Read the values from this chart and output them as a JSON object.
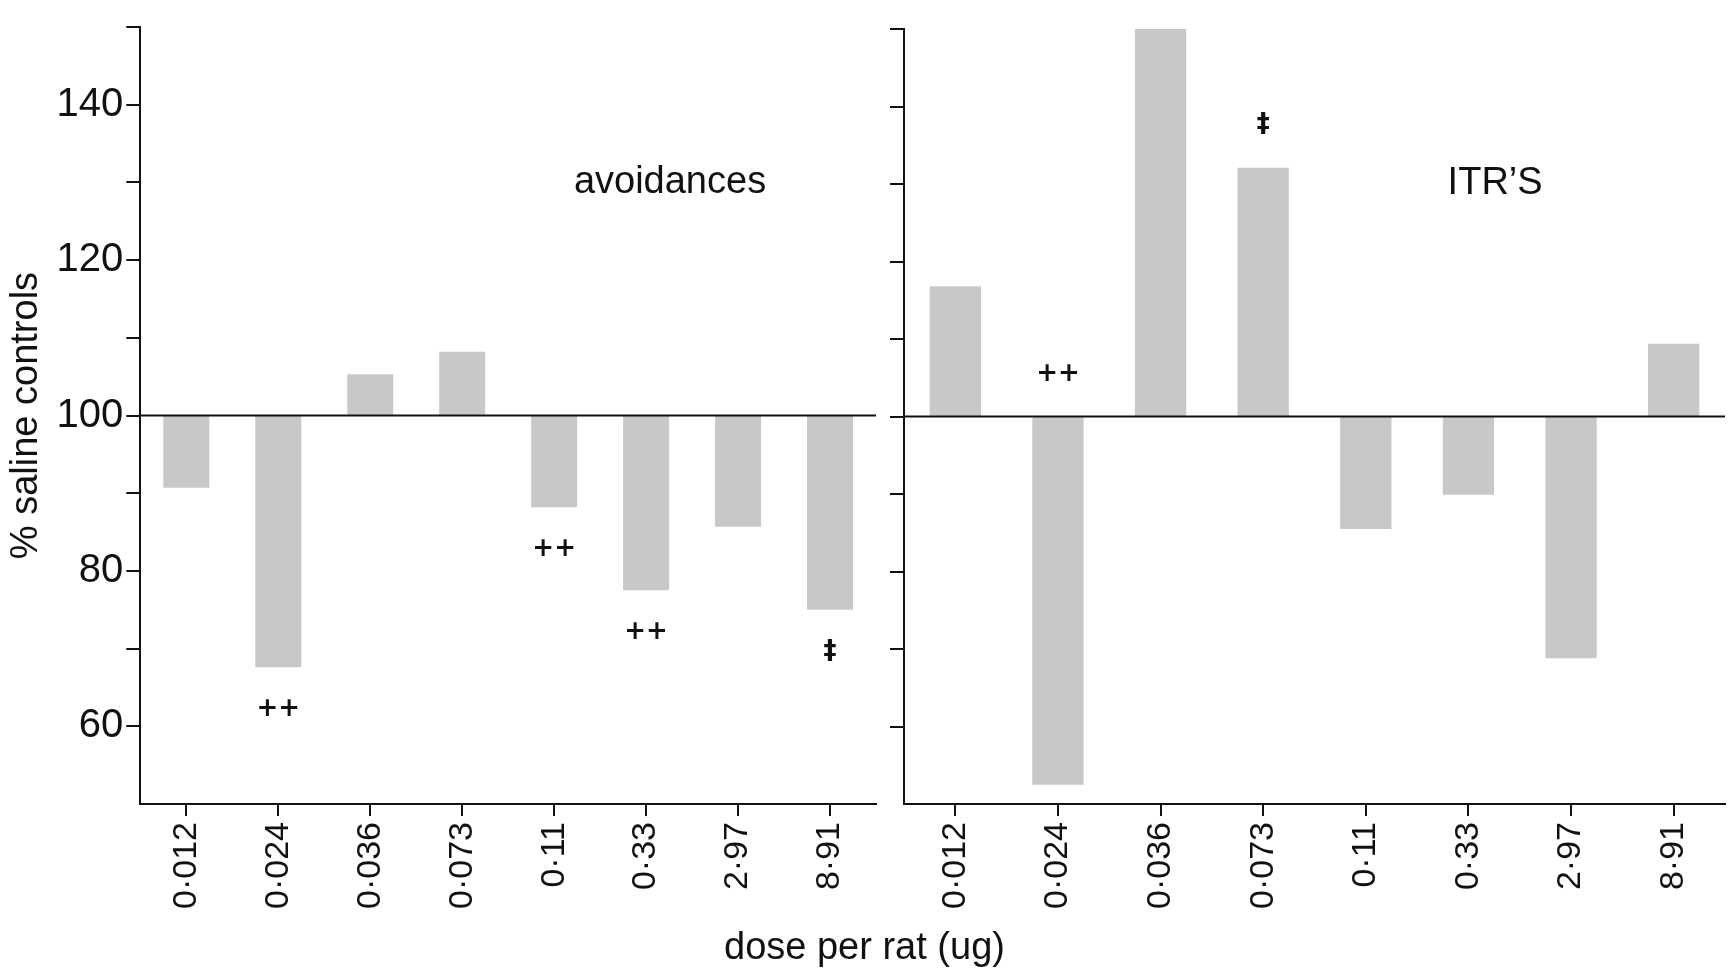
{
  "chart_data": [
    {
      "type": "bar",
      "xlabel": "dose per rat (ug)",
      "ylabel": "% saline controls",
      "categories": [
        "0·012",
        "0·024",
        "0·036",
        "0·073",
        "0·11",
        "0·33",
        "2·97",
        "8·91"
      ],
      "base": [
        100,
        100,
        100,
        100,
        100,
        100,
        100,
        100
      ],
      "values": [
        -9.3,
        -32.4,
        5.3,
        8.2,
        -11.8,
        -22.5,
        -14.3,
        -25.0
      ],
      "color": "#c8c8c8",
      "ylim": [
        50,
        150
      ],
      "yticks": [
        60,
        {
          "value": 70,
          "label": null
        },
        80,
        {
          "value": 90,
          "label": null
        },
        100,
        {
          "value": 110,
          "label": null
        },
        120,
        {
          "value": 130,
          "label": null
        },
        140,
        {
          "value": 150,
          "label": null
        }
      ],
      "ref_lines": [
        {
          "axis": "y",
          "value": 100
        }
      ],
      "annotations": [
        "avoidances",
        {
          "text": "++",
          "x": "0·024",
          "y": 67.6
        },
        {
          "text": "++",
          "x": "0·11",
          "y": 88.2
        },
        {
          "text": "++",
          "x": "0·33",
          "y": 77.5
        },
        {
          "text": "‡",
          "x": "8·91",
          "y": 75.0
        }
      ],
      "grid": false,
      "legend": false
    },
    {
      "type": "bar",
      "categories": [
        "0·012",
        "0·024",
        "0·036",
        "0·073",
        "0·11",
        "0·33",
        "2·97",
        "8·91"
      ],
      "base": [
        100,
        100,
        100,
        100,
        100,
        100,
        100,
        100
      ],
      "values": [
        16.8,
        -47.5,
        50,
        32.1,
        -14.5,
        -10.1,
        -31.2,
        9.4
      ],
      "color": "#c8c8c8",
      "ylim": [
        50,
        150
      ],
      "yticks": [
        60,
        {
          "value": 70,
          "label": null
        },
        80,
        {
          "value": 90,
          "label": null
        },
        100,
        {
          "value": 110,
          "label": null
        },
        120,
        {
          "value": 130,
          "label": null
        },
        140,
        {
          "value": 150,
          "label": null
        }
      ],
      "tick_labels": "x",
      "ref_lines": [
        {
          "axis": "y",
          "value": 100
        }
      ],
      "annotations": [
        "ITR’S",
        {
          "text": "++",
          "x": "0·024",
          "y": 100
        },
        {
          "text": "‡",
          "x": "0·073",
          "y": 132.1
        }
      ],
      "grid": false,
      "legend": false
    }
  ]
}
